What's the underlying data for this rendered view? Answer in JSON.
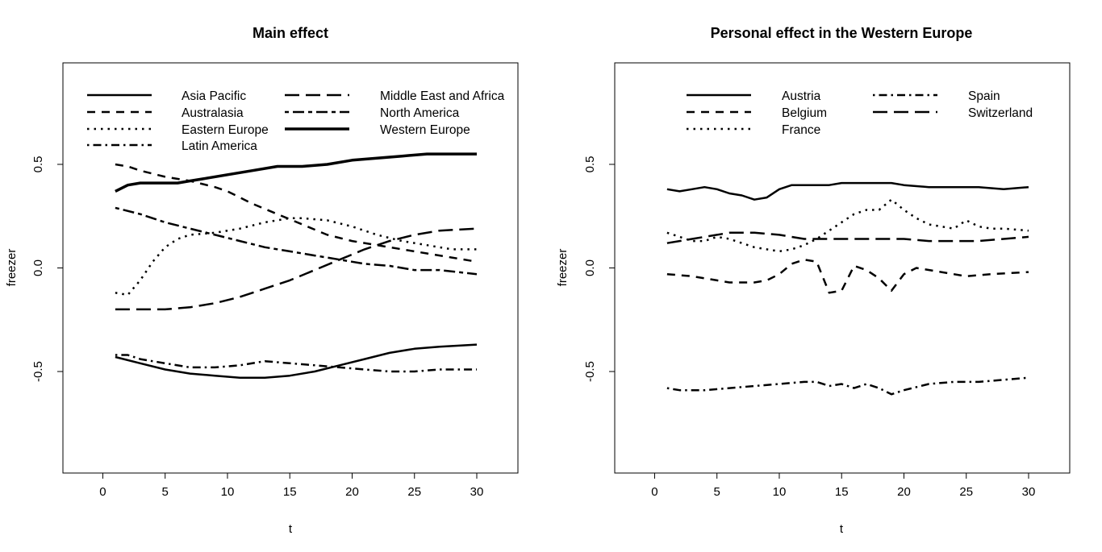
{
  "chart_data": [
    {
      "type": "line",
      "title": "Main effect",
      "xlabel": "t",
      "ylabel": "freezer",
      "xlim": [
        -3.2,
        33.3
      ],
      "ylim": [
        -0.99,
        0.99
      ],
      "x_ticks": [
        0,
        5,
        10,
        15,
        20,
        25,
        30
      ],
      "y_ticks": [
        -0.5,
        0.0,
        0.5
      ],
      "y_tick_labels": [
        "-0.5",
        "0.0",
        "0.5"
      ],
      "legend_position": "top",
      "series": [
        {
          "name": "Asia Pacific",
          "dash": "solid",
          "width": 2.5,
          "x": [
            1,
            3,
            5,
            7,
            9,
            11,
            13,
            15,
            17,
            19,
            21,
            23,
            25,
            27,
            30
          ],
          "y": [
            -0.43,
            -0.46,
            -0.49,
            -0.51,
            -0.52,
            -0.53,
            -0.53,
            -0.52,
            -0.5,
            -0.47,
            -0.44,
            -0.41,
            -0.39,
            -0.38,
            -0.37
          ]
        },
        {
          "name": "Australasia",
          "dash": "dashed",
          "width": 2.5,
          "x": [
            1,
            2,
            3,
            5,
            7,
            9,
            10,
            11,
            12,
            14,
            16,
            18,
            20,
            22,
            24,
            26,
            28,
            30
          ],
          "y": [
            0.5,
            0.49,
            0.47,
            0.44,
            0.42,
            0.39,
            0.37,
            0.34,
            0.31,
            0.26,
            0.21,
            0.16,
            0.13,
            0.11,
            0.09,
            0.07,
            0.05,
            0.03
          ]
        },
        {
          "name": "Eastern Europe",
          "dash": "dotted",
          "width": 2.5,
          "x": [
            1,
            2,
            3,
            4,
            5,
            6,
            7,
            9,
            11,
            13,
            15,
            16,
            18,
            20,
            22,
            24,
            26,
            28,
            30
          ],
          "y": [
            -0.12,
            -0.13,
            -0.06,
            0.03,
            0.1,
            0.14,
            0.16,
            0.17,
            0.19,
            0.22,
            0.24,
            0.24,
            0.23,
            0.2,
            0.16,
            0.13,
            0.11,
            0.09,
            0.09
          ]
        },
        {
          "name": "Latin America",
          "dash": "dotdash",
          "width": 2.5,
          "x": [
            1,
            2,
            3,
            5,
            7,
            9,
            11,
            13,
            15,
            17,
            19,
            21,
            23,
            25,
            27,
            30
          ],
          "y": [
            -0.42,
            -0.42,
            -0.44,
            -0.46,
            -0.48,
            -0.48,
            -0.47,
            -0.45,
            -0.46,
            -0.47,
            -0.48,
            -0.49,
            -0.5,
            -0.5,
            -0.49,
            -0.49
          ]
        },
        {
          "name": "Middle East and Africa",
          "dash": "longdash",
          "width": 2.5,
          "x": [
            1,
            3,
            5,
            7,
            9,
            11,
            13,
            15,
            17,
            19,
            21,
            23,
            25,
            27,
            30
          ],
          "y": [
            -0.2,
            -0.2,
            -0.2,
            -0.19,
            -0.17,
            -0.14,
            -0.1,
            -0.06,
            -0.01,
            0.04,
            0.09,
            0.13,
            0.16,
            0.18,
            0.19
          ]
        },
        {
          "name": "North America",
          "dash": "twodash",
          "width": 2.5,
          "x": [
            1,
            3,
            5,
            7,
            9,
            11,
            13,
            15,
            17,
            19,
            21,
            23,
            25,
            27,
            30
          ],
          "y": [
            0.29,
            0.26,
            0.22,
            0.19,
            0.16,
            0.13,
            0.1,
            0.08,
            0.06,
            0.04,
            0.02,
            0.01,
            -0.01,
            -0.01,
            -0.03
          ]
        },
        {
          "name": "Western Europe",
          "dash": "solid",
          "width": 3.5,
          "x": [
            1,
            2,
            3,
            4,
            5,
            6,
            7,
            8,
            10,
            12,
            14,
            16,
            18,
            20,
            22,
            24,
            26,
            28,
            30
          ],
          "y": [
            0.37,
            0.4,
            0.41,
            0.41,
            0.41,
            0.41,
            0.42,
            0.43,
            0.45,
            0.47,
            0.49,
            0.49,
            0.5,
            0.52,
            0.53,
            0.54,
            0.55,
            0.55,
            0.55
          ]
        }
      ]
    },
    {
      "type": "line",
      "title": "Personal effect in the Western Europe",
      "xlabel": "t",
      "ylabel": "freezer",
      "xlim": [
        -3.2,
        33.3
      ],
      "ylim": [
        -0.99,
        0.99
      ],
      "x_ticks": [
        0,
        5,
        10,
        15,
        20,
        25,
        30
      ],
      "y_ticks": [
        -0.5,
        0.0,
        0.5
      ],
      "y_tick_labels": [
        "-0.5",
        "0.0",
        "0.5"
      ],
      "legend_position": "top",
      "series": [
        {
          "name": "Austria",
          "dash": "solid",
          "width": 2.5,
          "x": [
            1,
            2,
            3,
            4,
            5,
            6,
            7,
            8,
            9,
            10,
            11,
            12,
            13,
            14,
            15,
            16,
            17,
            18,
            19,
            20,
            22,
            24,
            26,
            28,
            30
          ],
          "y": [
            0.38,
            0.37,
            0.38,
            0.39,
            0.38,
            0.36,
            0.35,
            0.33,
            0.34,
            0.38,
            0.4,
            0.4,
            0.4,
            0.4,
            0.41,
            0.41,
            0.41,
            0.41,
            0.41,
            0.4,
            0.39,
            0.39,
            0.39,
            0.38,
            0.39
          ]
        },
        {
          "name": "Belgium",
          "dash": "dashed",
          "width": 2.5,
          "x": [
            1,
            3,
            5,
            6,
            7,
            8,
            9,
            10,
            11,
            12,
            13,
            14,
            15,
            16,
            17,
            18,
            19,
            20,
            21,
            23,
            25,
            27,
            30
          ],
          "y": [
            -0.03,
            -0.04,
            -0.06,
            -0.07,
            -0.07,
            -0.07,
            -0.06,
            -0.03,
            0.02,
            0.04,
            0.03,
            -0.12,
            -0.11,
            0.01,
            -0.01,
            -0.05,
            -0.11,
            -0.03,
            0.0,
            -0.02,
            -0.04,
            -0.03,
            -0.02
          ]
        },
        {
          "name": "France",
          "dash": "dotted",
          "width": 2.5,
          "x": [
            1,
            2,
            3,
            4,
            5,
            6,
            7,
            8,
            9,
            10,
            11,
            12,
            13,
            14,
            15,
            16,
            17,
            18,
            19,
            20,
            21,
            22,
            23,
            24,
            25,
            26,
            27,
            28,
            30
          ],
          "y": [
            0.17,
            0.15,
            0.13,
            0.13,
            0.15,
            0.14,
            0.12,
            0.1,
            0.09,
            0.08,
            0.09,
            0.11,
            0.14,
            0.18,
            0.22,
            0.26,
            0.28,
            0.28,
            0.33,
            0.28,
            0.24,
            0.21,
            0.2,
            0.19,
            0.23,
            0.2,
            0.19,
            0.19,
            0.18
          ]
        },
        {
          "name": "Spain",
          "dash": "dotdash",
          "width": 2.5,
          "x": [
            1,
            2,
            3,
            4,
            6,
            8,
            10,
            12,
            13,
            14,
            15,
            16,
            17,
            18,
            19,
            20,
            22,
            24,
            26,
            28,
            30
          ],
          "y": [
            -0.58,
            -0.59,
            -0.59,
            -0.59,
            -0.58,
            -0.57,
            -0.56,
            -0.55,
            -0.55,
            -0.57,
            -0.56,
            -0.58,
            -0.56,
            -0.58,
            -0.61,
            -0.59,
            -0.56,
            -0.55,
            -0.55,
            -0.54,
            -0.53
          ]
        },
        {
          "name": "Switzerland",
          "dash": "longdash",
          "width": 2.5,
          "x": [
            1,
            3,
            5,
            6,
            7,
            8,
            10,
            12,
            14,
            16,
            18,
            20,
            22,
            24,
            26,
            28,
            30
          ],
          "y": [
            0.12,
            0.14,
            0.16,
            0.17,
            0.17,
            0.17,
            0.16,
            0.14,
            0.14,
            0.14,
            0.14,
            0.14,
            0.13,
            0.13,
            0.13,
            0.14,
            0.15
          ]
        }
      ]
    }
  ]
}
